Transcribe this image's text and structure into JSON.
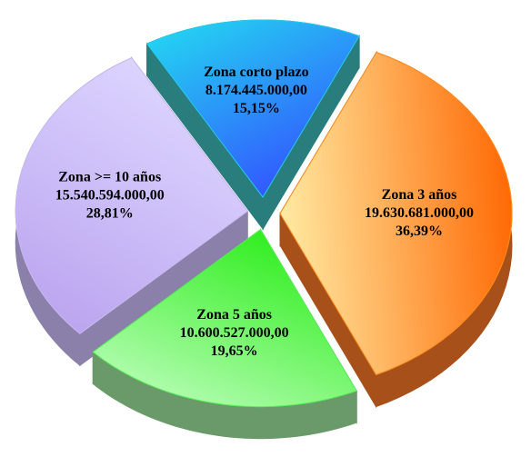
{
  "chart_data": {
    "type": "pie",
    "categories": [
      "Zona corto plazo",
      "Zona 3 años",
      "Zona 5 años",
      "Zona >= 10 años"
    ],
    "values": [
      15.15,
      36.39,
      19.65,
      28.81
    ],
    "value_labels": [
      "15,15%",
      "36,39%",
      "19,65%",
      "28,81%"
    ],
    "amounts": [
      8174445000,
      19630681000,
      10600527000,
      15540594000
    ],
    "amount_labels": [
      "8.174.445.000,00",
      "19.630.681.000,00",
      "10.600.527.000,00",
      "15.540.594.000,00"
    ],
    "colors": [
      "#22ccee",
      "#ff8c1a",
      "#55ee55",
      "#c8b8f0"
    ]
  }
}
